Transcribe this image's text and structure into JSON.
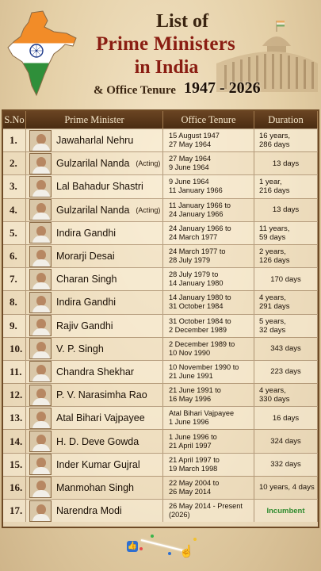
{
  "header": {
    "title_line1": "List of",
    "title_line2": "Prime Ministers",
    "title_line3": "in India",
    "subtitle": "& Office Tenure",
    "years": "1947 - 2026"
  },
  "table": {
    "headers": [
      "S.No",
      "Prime Minister",
      "Office Tenure",
      "Duration"
    ],
    "rows": [
      {
        "sn": "1.",
        "name": "Jawaharlal Nehru",
        "note": "",
        "tenure1": "15 August 1947",
        "tenure2": "27 May 1964",
        "dur1": "16 years,",
        "dur2": "286 days"
      },
      {
        "sn": "2.",
        "name": "Gulzarilal Nanda",
        "note": "(Acting)",
        "tenure1": "27 May 1964",
        "tenure2": "9 June 1964",
        "dur1": "13 days",
        "dur2": ""
      },
      {
        "sn": "3.",
        "name": "Lal Bahadur Shastri",
        "note": "",
        "tenure1": "9 June 1964",
        "tenure2": "11 January 1966",
        "dur1": "1 year,",
        "dur2": "216 days"
      },
      {
        "sn": "4.",
        "name": "Gulzarilal Nanda",
        "note": "(Acting)",
        "tenure1": "11 January 1966 to",
        "tenure2": "24 January 1966",
        "dur1": "13 days",
        "dur2": ""
      },
      {
        "sn": "5.",
        "name": "Indira Gandhi",
        "note": "",
        "tenure1": "24 January 1966 to",
        "tenure2": "24 March 1977",
        "dur1": "11 years,",
        "dur2": "59 days"
      },
      {
        "sn": "6.",
        "name": "Morarji Desai",
        "note": "",
        "tenure1": "24 March 1977 to",
        "tenure2": "28 July 1979",
        "dur1": "2 years,",
        "dur2": "126 days"
      },
      {
        "sn": "7.",
        "name": "Charan Singh",
        "note": "",
        "tenure1": "28 July 1979 to",
        "tenure2": "14 January 1980",
        "dur1": "170 days",
        "dur2": ""
      },
      {
        "sn": "8.",
        "name": "Indira Gandhi",
        "note": "",
        "tenure1": "14 January 1980 to",
        "tenure2": "31 October 1984",
        "dur1": "4 years,",
        "dur2": "291 days"
      },
      {
        "sn": "9.",
        "name": "Rajiv Gandhi",
        "note": "",
        "tenure1": "31 October 1984 to",
        "tenure2": "2 December 1989",
        "dur1": "5 years,",
        "dur2": "32 days"
      },
      {
        "sn": "10.",
        "name": "V. P. Singh",
        "note": "",
        "tenure1": "2 December 1989 to",
        "tenure2": "10 Nov 1990",
        "dur1": "343 days",
        "dur2": ""
      },
      {
        "sn": "11.",
        "name": "Chandra Shekhar",
        "note": "",
        "tenure1": "10 November 1990 to",
        "tenure2": "21 June 1991",
        "dur1": "223 days",
        "dur2": ""
      },
      {
        "sn": "12.",
        "name": "P. V. Narasimha Rao",
        "note": "",
        "tenure1": "21 June 1991 to",
        "tenure2": "16 May 1996",
        "dur1": "4 years,",
        "dur2": "330 days"
      },
      {
        "sn": "13.",
        "name": "Atal Bihari Vajpayee",
        "note": "",
        "tenure1": "Atal Bihari Vajpayee",
        "tenure2": "1 June 1996",
        "dur1": "16 days",
        "dur2": ""
      },
      {
        "sn": "14.",
        "name": "H. D. Deve Gowda",
        "note": "",
        "tenure1": "1 June 1996 to",
        "tenure2": "21 April 1997",
        "dur1": "324 days",
        "dur2": ""
      },
      {
        "sn": "15.",
        "name": "Inder Kumar Gujral",
        "note": "",
        "tenure1": "21 April 1997 to",
        "tenure2": "19 March 1998",
        "dur1": "332 days",
        "dur2": ""
      },
      {
        "sn": "16.",
        "name": "Manmohan Singh",
        "note": "",
        "tenure1": "22 May 2004 to",
        "tenure2": "26 May 2014",
        "dur1": "10 years, 4 days",
        "dur2": ""
      },
      {
        "sn": "17.",
        "name": "Narendra Modi",
        "note": "",
        "tenure1": "26 May 2014 - Present (2026)",
        "tenure2": "",
        "dur1": "Incumbent",
        "dur2": ""
      }
    ]
  },
  "colors": {
    "title_red": "#8a1d12",
    "header_brown": "#5a3818",
    "incumbent_green": "#2e8b2e",
    "saffron": "#f28c28",
    "india_green": "#2f8f3a"
  },
  "icons": {
    "map": "india-map-icon",
    "parliament": "parliament-building-icon",
    "like": "thumbs-up-icon",
    "hand": "pointing-hand-icon"
  }
}
